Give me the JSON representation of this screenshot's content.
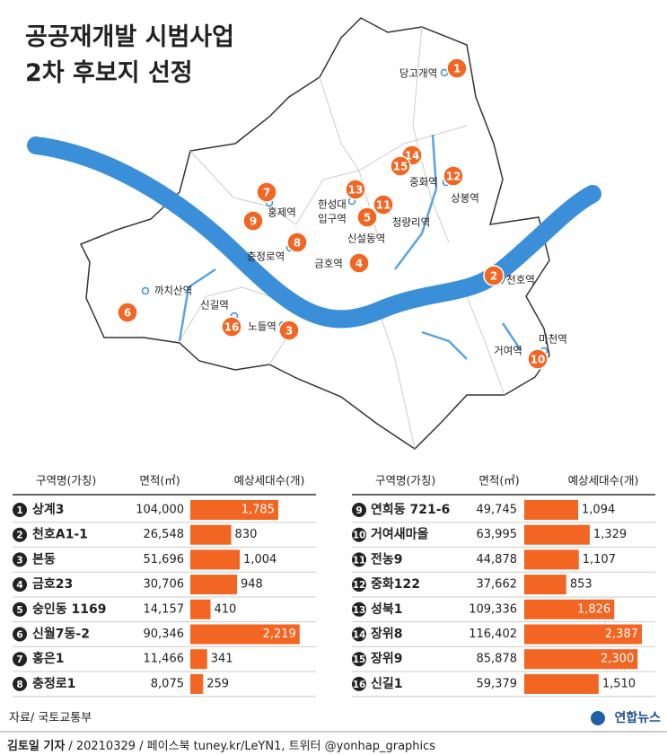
{
  "title": [
    "공공재개발 시범사업",
    "2차 후보지 선정"
  ],
  "map": {
    "markers": [
      "1",
      "2",
      "3",
      "4",
      "5",
      "6",
      "7",
      "8",
      "9",
      "10",
      "11",
      "12",
      "13",
      "14",
      "15",
      "16"
    ],
    "stations": [
      "당고개역",
      "천호역",
      "노들역",
      "금호역",
      "신설동역",
      "까치산역",
      "홍제역",
      "충정로역",
      "마천역",
      "거여역",
      "청량리역",
      "중화역",
      "상봉역",
      "한성대",
      "입구역",
      "신길역"
    ]
  },
  "chart_data": [
    {
      "type": "bar",
      "columns": [
        "구역명(가칭)",
        "면적(㎡)",
        "예상세대수(개)"
      ],
      "numbers": [
        "1",
        "2",
        "3",
        "4",
        "5",
        "6",
        "7",
        "8"
      ],
      "categories": [
        "상계3",
        "천호A1-1",
        "본동",
        "금호23",
        "숭인동 1169",
        "신월7동-2",
        "홍은1",
        "충정로1"
      ],
      "areas": [
        "104,000",
        "26,548",
        "51,696",
        "30,706",
        "14,157",
        "90,346",
        "11,466",
        "8,075"
      ],
      "values": [
        1785,
        830,
        1004,
        948,
        410,
        2219,
        341,
        259
      ],
      "value_labels": [
        "1,785",
        "830",
        "1,004",
        "948",
        "410",
        "2,219",
        "341",
        "259"
      ],
      "color": "#f26522"
    },
    {
      "type": "bar",
      "columns": [
        "구역명(가칭)",
        "면적(㎡)",
        "예상세대수(개)"
      ],
      "numbers": [
        "9",
        "10",
        "11",
        "12",
        "13",
        "14",
        "15",
        "16"
      ],
      "categories": [
        "연희동 721-6",
        "거여새마을",
        "전농9",
        "중화122",
        "성북1",
        "장위8",
        "장위9",
        "신길1"
      ],
      "areas": [
        "49,745",
        "63,995",
        "44,878",
        "37,662",
        "109,336",
        "116,402",
        "85,878",
        "59,379"
      ],
      "values": [
        1094,
        1329,
        1107,
        853,
        1826,
        2387,
        2300,
        1510
      ],
      "value_labels": [
        "1,094",
        "1,329",
        "1,107",
        "853",
        "1,826",
        "2,387",
        "2,300",
        "1,510"
      ],
      "color": "#f26522"
    }
  ],
  "footer": {
    "source": "자료/ 국토교통부",
    "logo": "연합뉴스",
    "credit": "김토일 기자",
    "info": "/ 20210329 / 페이스북 tuney.kr/LeYN1, 트위터 @yonhap_graphics"
  }
}
